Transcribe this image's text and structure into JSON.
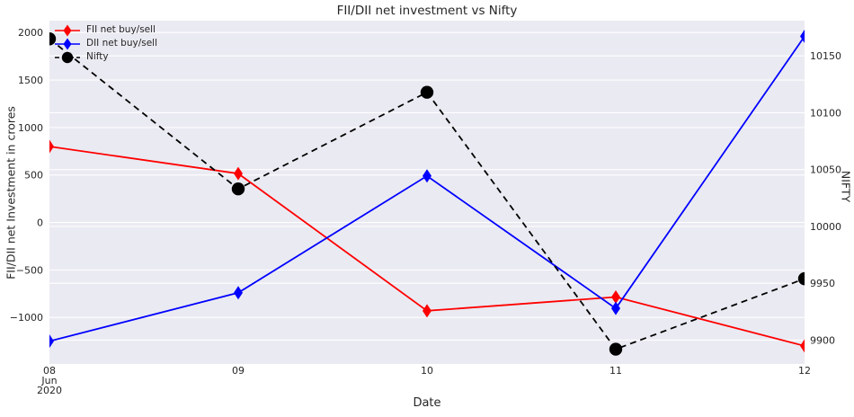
{
  "colors": {
    "figure_bg": "#ffffff",
    "plot_bg": "#eaeaf2",
    "grid": "#ffffff",
    "text": "#262626",
    "fii": "#ff0000",
    "dii": "#0000ff",
    "nifty": "#000000"
  },
  "chart_data": {
    "type": "line",
    "title": "FII/DII net investment vs Nifty",
    "xlabel": "Date",
    "ylabel_left": "FII/DII net Investment in crores",
    "ylabel_right": "NIFTY",
    "grid": "on",
    "legend_position": "upper-left",
    "x_dates": [
      "2020-06-08",
      "2020-06-09",
      "2020-06-10",
      "2020-06-11",
      "2020-06-12"
    ],
    "x_tick_labels": [
      "08",
      "09",
      "10",
      "11",
      "12"
    ],
    "x_first_tick_sublabels": [
      "Jun",
      "2020"
    ],
    "left_axis": {
      "ticks": [
        2000,
        1500,
        1000,
        500,
        0,
        -500,
        -1000
      ],
      "ylim": [
        -1490,
        2125
      ]
    },
    "right_axis": {
      "ticks": [
        10150,
        10100,
        10050,
        10000,
        9950,
        9900
      ],
      "ylim": [
        9879,
        10181
      ]
    },
    "series": [
      {
        "name": "FII net buy/sell",
        "axis": "left",
        "color": "#ff0000",
        "marker": "diamond",
        "line": "solid",
        "values": [
          800,
          515,
          -930,
          -785,
          -1300
        ]
      },
      {
        "name": "DII net buy/sell",
        "axis": "left",
        "color": "#0000ff",
        "marker": "diamond",
        "line": "solid",
        "values": [
          -1250,
          -740,
          490,
          -905,
          1960
        ]
      },
      {
        "name": "Nifty",
        "axis": "right",
        "color": "#000000",
        "marker": "circle",
        "line": "dashed",
        "values": [
          10165,
          10033,
          10118,
          9892,
          9954
        ]
      }
    ]
  }
}
